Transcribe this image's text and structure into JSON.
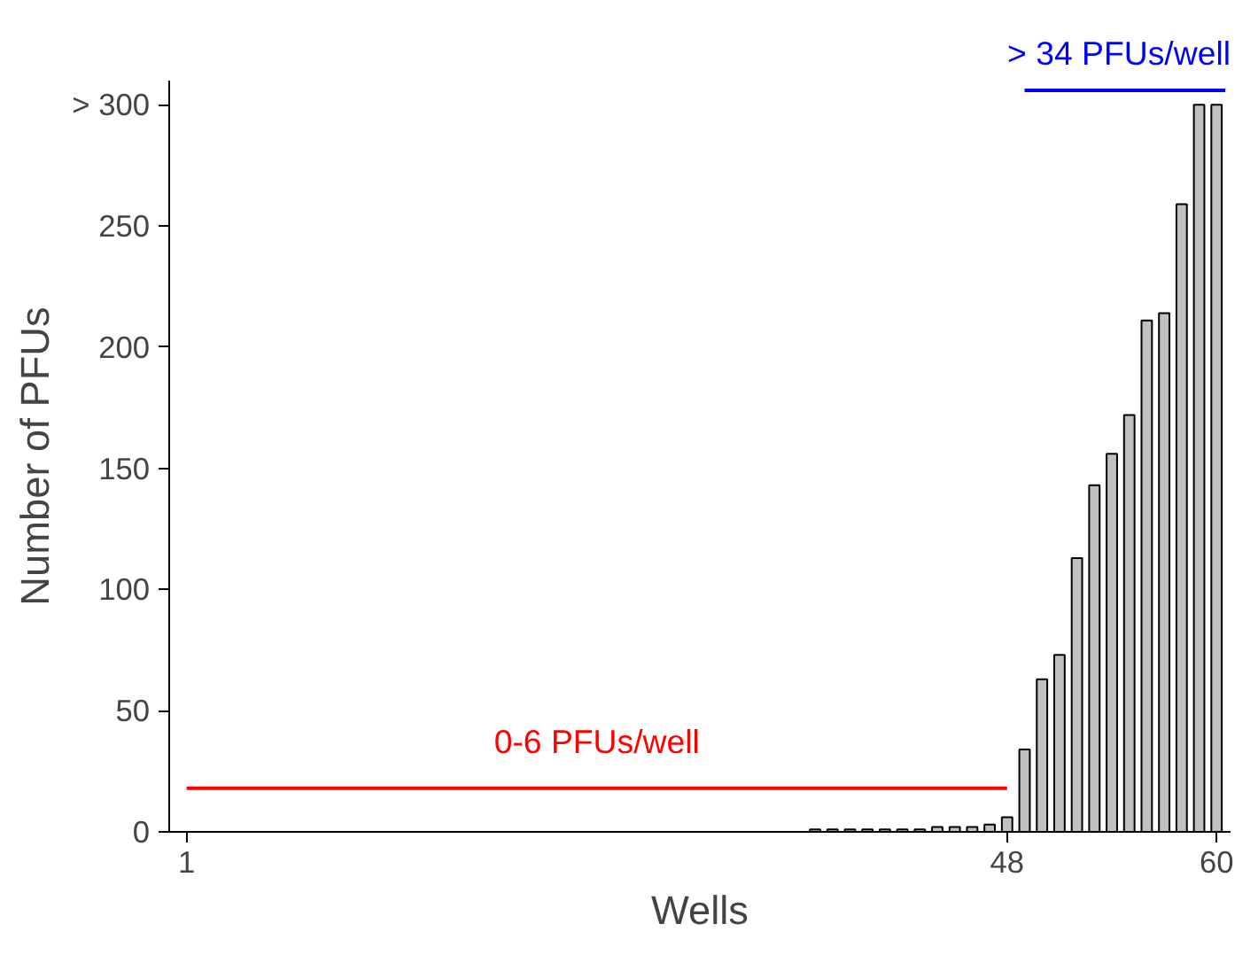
{
  "chart_data": {
    "type": "bar",
    "xlabel": "Wells",
    "ylabel": "Number of PFUs",
    "x": [
      37,
      38,
      39,
      40,
      41,
      42,
      43,
      44,
      45,
      46,
      47,
      48,
      49,
      50,
      51,
      52,
      53,
      54,
      55,
      56,
      57,
      58,
      59,
      60
    ],
    "series": [
      {
        "color": "#c0c0c0",
        "values": [
          1,
          1,
          1,
          1,
          1,
          1,
          1,
          2,
          2,
          2,
          3,
          6,
          34,
          63,
          73,
          113,
          143,
          156,
          172,
          211,
          214,
          259,
          300,
          300
        ]
      },
      {
        "type": "line",
        "name": "0-6 PFUs/well",
        "color": "#ff0000",
        "x": [
          1,
          48
        ],
        "values": [
          18,
          18
        ]
      },
      {
        "type": "line",
        "name": "> 34 PFUs/well",
        "color": "#0000ff",
        "x": [
          49,
          60.5
        ],
        "values": [
          306,
          306
        ]
      }
    ],
    "xlim": [
      0,
      60.8
    ],
    "xticks": [
      1,
      48,
      60
    ],
    "ylim": [
      0,
      310
    ],
    "yticks": [
      0,
      50,
      100,
      150,
      200,
      250,
      {
        "value": 300,
        "label": "> 300"
      }
    ],
    "grid": false
  }
}
